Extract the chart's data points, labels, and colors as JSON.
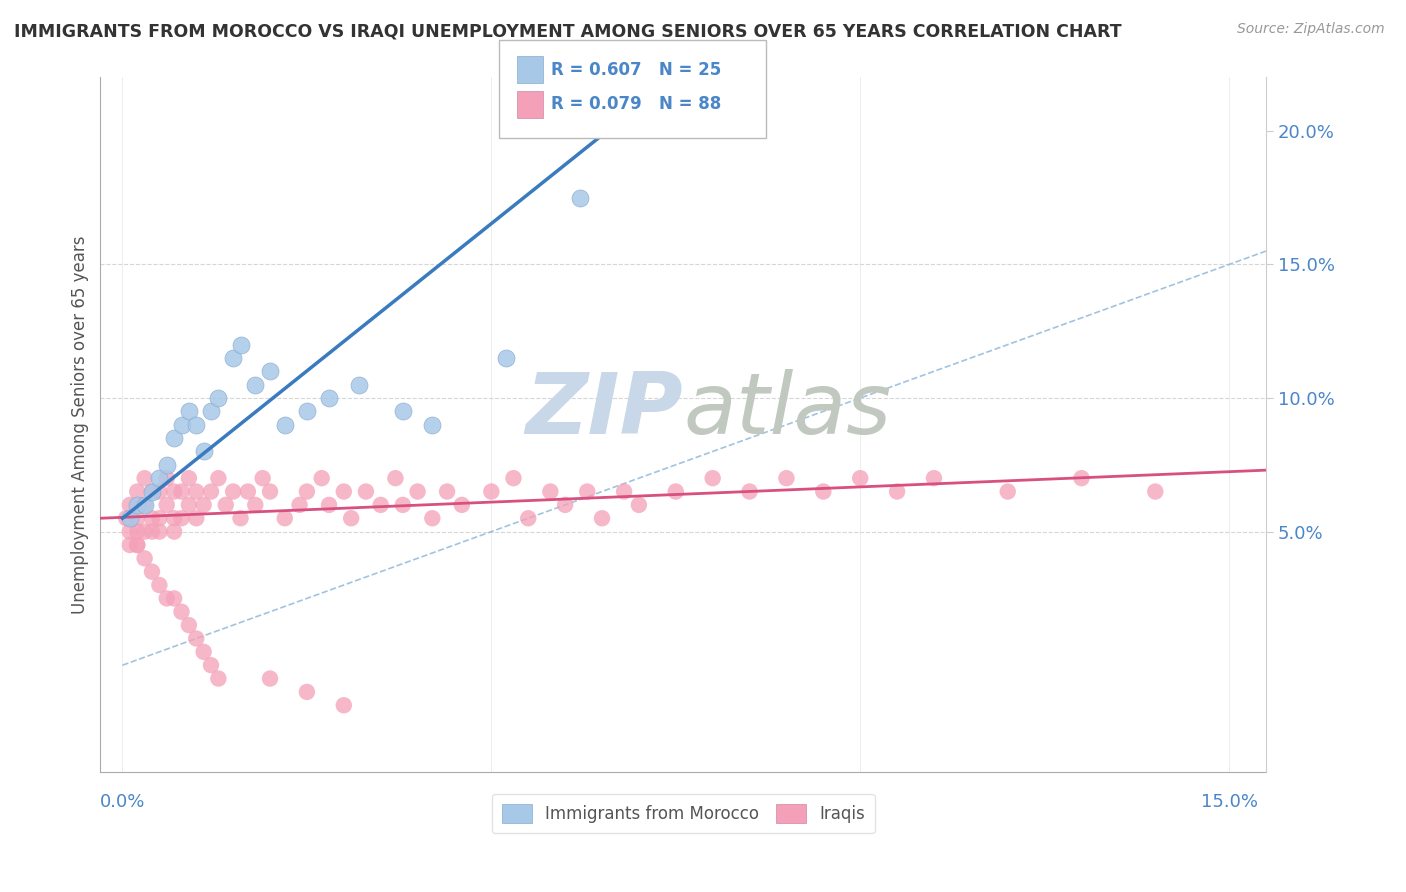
{
  "title": "IMMIGRANTS FROM MOROCCO VS IRAQI UNEMPLOYMENT AMONG SENIORS OVER 65 YEARS CORRELATION CHART",
  "source": "Source: ZipAtlas.com",
  "ylabel": "Unemployment Among Seniors over 65 years",
  "xlim": [
    -0.003,
    0.155
  ],
  "ylim": [
    -0.04,
    0.22
  ],
  "legend1_r": "R = 0.607",
  "legend1_n": "N = 25",
  "legend2_r": "R = 0.079",
  "legend2_n": "N = 88",
  "legend1_label": "Immigrants from Morocco",
  "legend2_label": "Iraqis",
  "blue_color": "#a8c8e8",
  "pink_color": "#f4a0b8",
  "blue_line_color": "#3a7abf",
  "pink_line_color": "#d85080",
  "ref_line_color": "#8ab4d8",
  "watermark_zip_color": "#c8d8e8",
  "watermark_atlas_color": "#c0c8c0",
  "background_color": "#ffffff",
  "morocco_x": [
    0.001,
    0.002,
    0.003,
    0.004,
    0.005,
    0.006,
    0.007,
    0.008,
    0.009,
    0.01,
    0.011,
    0.012,
    0.013,
    0.015,
    0.016,
    0.018,
    0.02,
    0.022,
    0.025,
    0.028,
    0.032,
    0.038,
    0.042,
    0.052,
    0.062
  ],
  "morocco_y": [
    0.055,
    0.06,
    0.06,
    0.065,
    0.07,
    0.075,
    0.085,
    0.09,
    0.095,
    0.09,
    0.08,
    0.095,
    0.1,
    0.115,
    0.12,
    0.105,
    0.11,
    0.09,
    0.095,
    0.1,
    0.105,
    0.095,
    0.09,
    0.115,
    0.175
  ],
  "iraqi_x": [
    0.0005,
    0.001,
    0.001,
    0.001,
    0.002,
    0.002,
    0.002,
    0.002,
    0.003,
    0.003,
    0.003,
    0.004,
    0.004,
    0.004,
    0.005,
    0.005,
    0.005,
    0.006,
    0.006,
    0.007,
    0.007,
    0.007,
    0.008,
    0.008,
    0.009,
    0.009,
    0.01,
    0.01,
    0.011,
    0.012,
    0.013,
    0.014,
    0.015,
    0.016,
    0.017,
    0.018,
    0.019,
    0.02,
    0.022,
    0.024,
    0.025,
    0.027,
    0.028,
    0.03,
    0.031,
    0.033,
    0.035,
    0.037,
    0.038,
    0.04,
    0.042,
    0.044,
    0.046,
    0.05,
    0.053,
    0.055,
    0.058,
    0.06,
    0.063,
    0.065,
    0.068,
    0.07,
    0.075,
    0.08,
    0.085,
    0.09,
    0.095,
    0.1,
    0.105,
    0.11,
    0.12,
    0.13,
    0.14,
    0.002,
    0.003,
    0.004,
    0.005,
    0.006,
    0.007,
    0.008,
    0.009,
    0.01,
    0.011,
    0.012,
    0.013,
    0.02,
    0.025,
    0.03
  ],
  "iraqi_y": [
    0.055,
    0.06,
    0.05,
    0.045,
    0.065,
    0.055,
    0.05,
    0.045,
    0.07,
    0.06,
    0.05,
    0.065,
    0.055,
    0.05,
    0.065,
    0.055,
    0.05,
    0.07,
    0.06,
    0.065,
    0.055,
    0.05,
    0.065,
    0.055,
    0.07,
    0.06,
    0.065,
    0.055,
    0.06,
    0.065,
    0.07,
    0.06,
    0.065,
    0.055,
    0.065,
    0.06,
    0.07,
    0.065,
    0.055,
    0.06,
    0.065,
    0.07,
    0.06,
    0.065,
    0.055,
    0.065,
    0.06,
    0.07,
    0.06,
    0.065,
    0.055,
    0.065,
    0.06,
    0.065,
    0.07,
    0.055,
    0.065,
    0.06,
    0.065,
    0.055,
    0.065,
    0.06,
    0.065,
    0.07,
    0.065,
    0.07,
    0.065,
    0.07,
    0.065,
    0.07,
    0.065,
    0.07,
    0.065,
    0.045,
    0.04,
    0.035,
    0.03,
    0.025,
    0.025,
    0.02,
    0.015,
    0.01,
    0.005,
    0.0,
    -0.005,
    -0.005,
    -0.01,
    -0.015
  ],
  "blue_line_x0": 0.0,
  "blue_line_y0": 0.055,
  "blue_line_x1": 0.068,
  "blue_line_y1": 0.205,
  "pink_line_x0": -0.003,
  "pink_line_y0": 0.055,
  "pink_line_x1": 0.155,
  "pink_line_y1": 0.073,
  "ref_line_x0": 0.0,
  "ref_line_y0": 0.0,
  "ref_line_x1": 0.155,
  "ref_line_y1": 0.155
}
